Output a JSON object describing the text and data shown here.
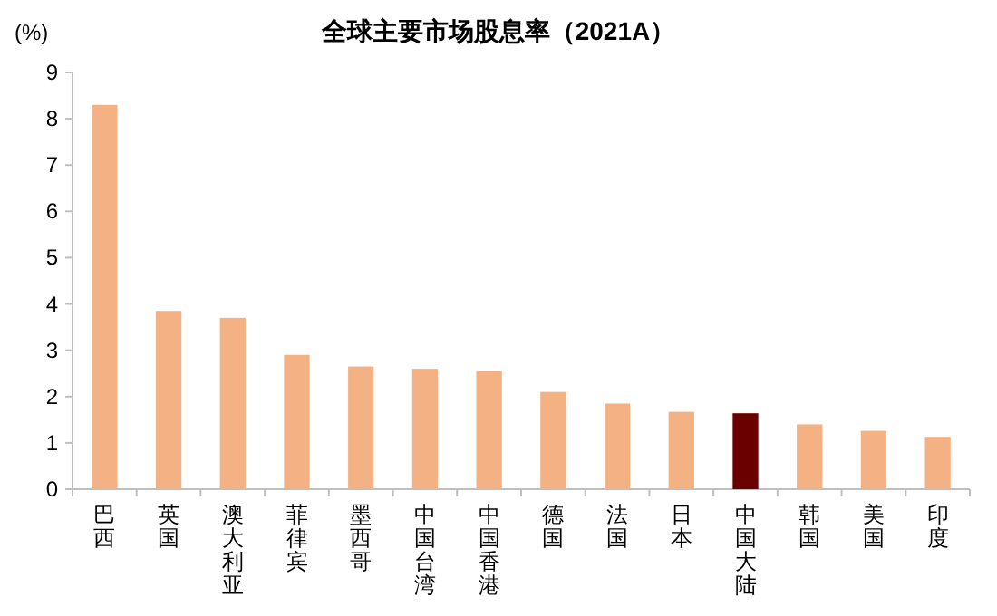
{
  "chart_data": {
    "type": "bar",
    "title": "全球主要市场股息率（2021A）",
    "ylabel": "(%)",
    "categories": [
      "巴西",
      "英国",
      "澳大利亚",
      "菲律宾",
      "墨西哥",
      "中国台湾",
      "中国香港",
      "德国",
      "法国",
      "日本",
      "中国大陆",
      "韩国",
      "美国",
      "印度"
    ],
    "values": [
      8.3,
      3.85,
      3.7,
      2.9,
      2.65,
      2.6,
      2.55,
      2.1,
      1.85,
      1.67,
      1.64,
      1.4,
      1.26,
      1.13
    ],
    "colors": [
      "#f4b183",
      "#f4b183",
      "#f4b183",
      "#f4b183",
      "#f4b183",
      "#f4b183",
      "#f4b183",
      "#f4b183",
      "#f4b183",
      "#f4b183",
      "#6b0000",
      "#f4b183",
      "#f4b183",
      "#f4b183"
    ],
    "ylim": [
      0,
      9
    ],
    "yticks": [
      0,
      1,
      2,
      3,
      4,
      5,
      6,
      7,
      8,
      9
    ],
    "grid": false
  }
}
